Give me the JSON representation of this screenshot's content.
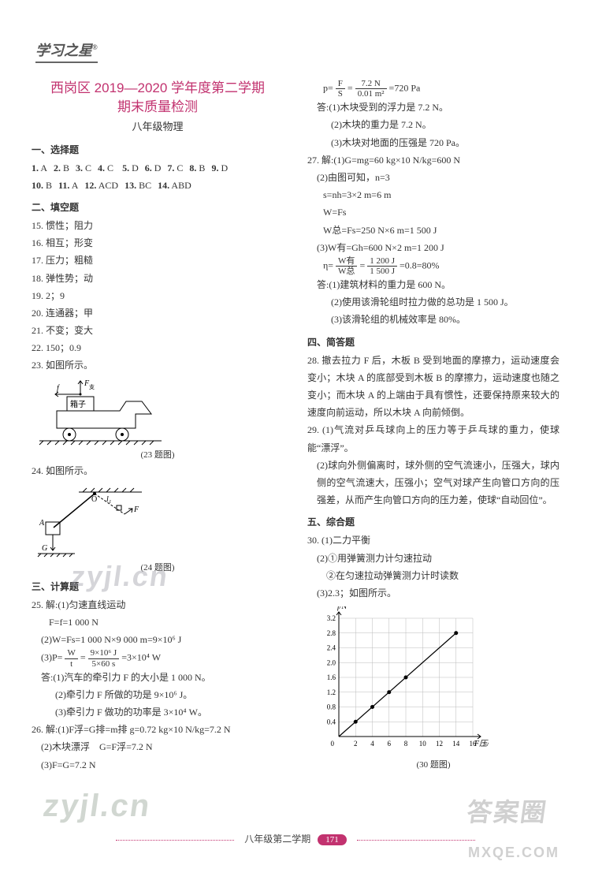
{
  "header": {
    "logo": "学习之星",
    "logo_sup": "®"
  },
  "title": {
    "line1": "西岗区 2019—2020 学年度第二学期",
    "line2": "期末质量检测",
    "subtitle": "八年级物理"
  },
  "sections": {
    "s1": "一、选择题",
    "s2": "二、填空题",
    "s3": "三、计算题",
    "s4": "四、简答题",
    "s5": "五、综合题"
  },
  "mc": [
    {
      "n": "1",
      "a": "A"
    },
    {
      "n": "2",
      "a": "B"
    },
    {
      "n": "3",
      "a": "C"
    },
    {
      "n": "4",
      "a": "C"
    },
    {
      "n": "5",
      "a": "D"
    },
    {
      "n": "6",
      "a": "D"
    },
    {
      "n": "7",
      "a": "C"
    },
    {
      "n": "8",
      "a": "B"
    },
    {
      "n": "9",
      "a": "D"
    },
    {
      "n": "10",
      "a": "B"
    },
    {
      "n": "11",
      "a": "A"
    },
    {
      "n": "12",
      "a": "ACD"
    },
    {
      "n": "13",
      "a": "BC"
    },
    {
      "n": "14",
      "a": "ABD"
    }
  ],
  "fill": {
    "q15": "15. 惯性；阻力",
    "q16": "16. 相互；形变",
    "q17": "17. 压力；粗糙",
    "q18": "18. 弹性势；动",
    "q19": "19. 2；9",
    "q20": "20. 连通器；甲",
    "q21": "21. 不变；变大",
    "q22": "22. 150；0.9",
    "q23": "23. 如图所示。",
    "q24": "24. 如图所示。"
  },
  "fig23": {
    "cap": "(23 题图)",
    "box": "箱子",
    "f": "f",
    "fn": "F",
    "n_sub": "支"
  },
  "fig24": {
    "cap": "(24 题图)",
    "O": "O",
    "l1": "l₁",
    "F": "F",
    "A": "A",
    "G": "G"
  },
  "calc25": {
    "head": "25. 解:(1)匀速直线运动",
    "l1": "F=f=1 000 N",
    "l2a": "(2)W=Fs=1 000 N×9 000 m=9×10⁶ J",
    "l3a": "(3)P=",
    "l3b_num": "W",
    "l3b_den": "t",
    "l3c": "=",
    "l3d_num": "9×10⁶ J",
    "l3d_den": "5×60 s",
    "l3e": "=3×10⁴ W",
    "a1": "答:(1)汽车的牵引力 F 的大小是 1 000 N。",
    "a2": "(2)牵引力 F 所做的功是 9×10⁶ J。",
    "a3": "(3)牵引力 F 做功的功率是 3×10⁴ W。"
  },
  "calc26": {
    "l1": "26. 解:(1)F浮=G排=m排 g=0.72 kg×10 N/kg=7.2 N",
    "l2": "(2)木块漂浮　G=F浮=7.2 N",
    "l3": "(3)F=G=7.2 N"
  },
  "right_top": {
    "p_eq_pre": "p=",
    "p_num1": "F",
    "p_den1": "S",
    "p_mid": "=",
    "p_num2": "7.2 N",
    "p_den2": "0.01 m²",
    "p_post": "=720 Pa",
    "a1": "答:(1)木块受到的浮力是 7.2 N。",
    "a2": "(2)木块的重力是 7.2 N。",
    "a3": "(3)木块对地面的压强是 720 Pa。"
  },
  "calc27": {
    "l1": "27. 解:(1)G=mg=60 kg×10 N/kg=600 N",
    "l2": "(2)由图可知，n=3",
    "l3": "s=nh=3×2 m=6 m",
    "l4": "W=Fs",
    "l5": "W总=Fs=250 N×6 m=1 500 J",
    "l6": "(3)W有=Gh=600 N×2 m=1 200 J",
    "eta_pre": "η=",
    "eta_num1": "W有",
    "eta_den1": "W总",
    "eta_mid": "=",
    "eta_num2": "1 200 J",
    "eta_den2": "1 500 J",
    "eta_post": "=0.8=80%",
    "a1": "答:(1)建筑材料的重力是 600 N。",
    "a2": "(2)使用该滑轮组时拉力做的总功是 1 500 J。",
    "a3": "(3)该滑轮组的机械效率是 80%。"
  },
  "sa28": "28. 撤去拉力 F 后，木板 B 受到地面的摩擦力，运动速度会变小；木块 A 的底部受到木板 B 的摩擦力，运动速度也随之变小；而木块 A 的上端由于具有惯性，还要保持原来较大的速度向前运动，所以木块 A 向前倾倒。",
  "sa29": {
    "l1": "29. (1)气流对乒乓球向上的压力等于乒乓球的重力，使球能“漂浮”。",
    "l2": "(2)球向外侧偏离时，球外侧的空气流速小，压强大，球内侧的空气流速大，压强小；空气对球产生向管口方向的压强差，从而产生向管口方向的压力差，使球“自动回位”。"
  },
  "q30": {
    "l1": "30. (1)二力平衡",
    "l2": "(2)①用弹簧测力计匀速拉动",
    "l3": "②在匀速拉动弹簧测力计时读数",
    "l4": "(3)2.3；如图所示。",
    "cap": "(30 题图)",
    "chart": {
      "type": "scatter-line",
      "xlabel": "F压/N",
      "ylabel": "f/N",
      "xlim": [
        0,
        16
      ],
      "ylim": [
        0,
        3.2
      ],
      "xticks": [
        2,
        4,
        6,
        8,
        10,
        12,
        14,
        16
      ],
      "yticks": [
        0.4,
        0.8,
        1.2,
        1.6,
        2.0,
        2.4,
        2.8,
        3.2
      ],
      "points": [
        [
          2,
          0.4
        ],
        [
          4,
          0.8
        ],
        [
          6,
          1.2
        ],
        [
          8,
          1.6
        ],
        [
          14,
          2.8
        ]
      ],
      "line": [
        [
          0,
          0
        ],
        [
          14,
          2.8
        ]
      ],
      "marker_color": "#000",
      "line_color": "#000",
      "grid_color": "#bbb",
      "bg": "#ffffff"
    }
  },
  "footer": {
    "label": "八年级第二学期",
    "page": "171"
  },
  "watermarks": {
    "w1": "zyjl.cn",
    "w2": "zyjl.cn",
    "w3": "答案圈",
    "w4": "MXQE.COM"
  }
}
